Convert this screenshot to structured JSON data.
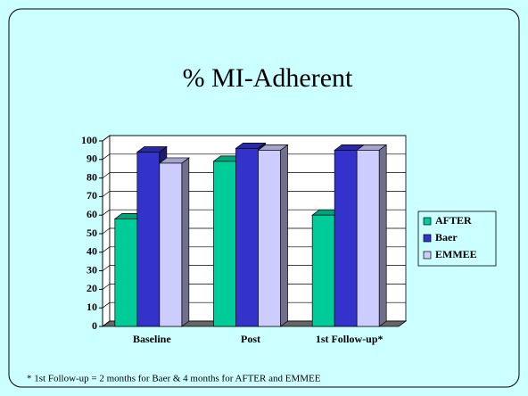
{
  "chart_data": {
    "type": "bar",
    "title": "% MI-Adherent",
    "categories": [
      "Baseline",
      "Post",
      "1st Follow-up*"
    ],
    "series": [
      {
        "name": "AFTER",
        "color": "#00cc99",
        "values": [
          58,
          89,
          60
        ]
      },
      {
        "name": "Baer",
        "color": "#3333cc",
        "values": [
          94,
          96,
          95
        ]
      },
      {
        "name": "EMMEE",
        "color": "#ccccff",
        "values": [
          88,
          95,
          95
        ]
      }
    ],
    "ylim": [
      0,
      100
    ],
    "yticks": [
      0,
      10,
      20,
      30,
      40,
      50,
      60,
      70,
      80,
      90,
      100
    ],
    "grid": true,
    "legend": "right",
    "footnote": "* 1st Follow-up = 2 months for Baer & 4 months for AFTER and EMMEE"
  }
}
